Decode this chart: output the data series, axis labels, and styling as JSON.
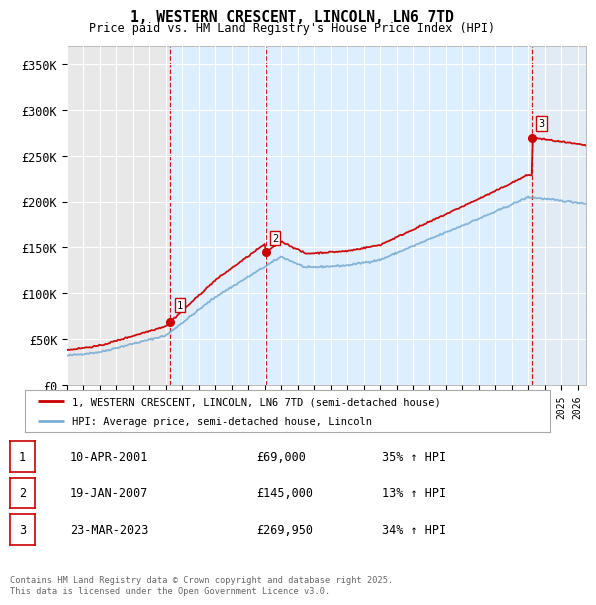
{
  "title": "1, WESTERN CRESCENT, LINCOLN, LN6 7TD",
  "subtitle": "Price paid vs. HM Land Registry's House Price Index (HPI)",
  "ylabel_ticks": [
    "£0",
    "£50K",
    "£100K",
    "£150K",
    "£200K",
    "£250K",
    "£300K",
    "£350K"
  ],
  "ytick_values": [
    0,
    50000,
    100000,
    150000,
    200000,
    250000,
    300000,
    350000
  ],
  "ylim": [
    0,
    370000
  ],
  "xlim_start": 1995.0,
  "xlim_end": 2026.5,
  "purchases": [
    {
      "num": 1,
      "date": "10-APR-2001",
      "price": 69000,
      "year": 2001.28,
      "pct": "35% ↑ HPI"
    },
    {
      "num": 2,
      "date": "19-JAN-2007",
      "price": 145000,
      "year": 2007.05,
      "pct": "13% ↑ HPI"
    },
    {
      "num": 3,
      "date": "23-MAR-2023",
      "price": 269950,
      "year": 2023.22,
      "pct": "34% ↑ HPI"
    }
  ],
  "legend_entries": [
    "1, WESTERN CRESCENT, LINCOLN, LN6 7TD (semi-detached house)",
    "HPI: Average price, semi-detached house, Lincoln"
  ],
  "footnote": "Contains HM Land Registry data © Crown copyright and database right 2025.\nThis data is licensed under the Open Government Licence v3.0.",
  "property_color": "#cc0000",
  "hpi_color": "#7aadd4",
  "background_color": "#ffffff",
  "plot_bg_color": "#e8e8e8",
  "grid_color": "#ffffff",
  "shade_color": "#ddeeff",
  "hatch_color": "#99bbdd"
}
